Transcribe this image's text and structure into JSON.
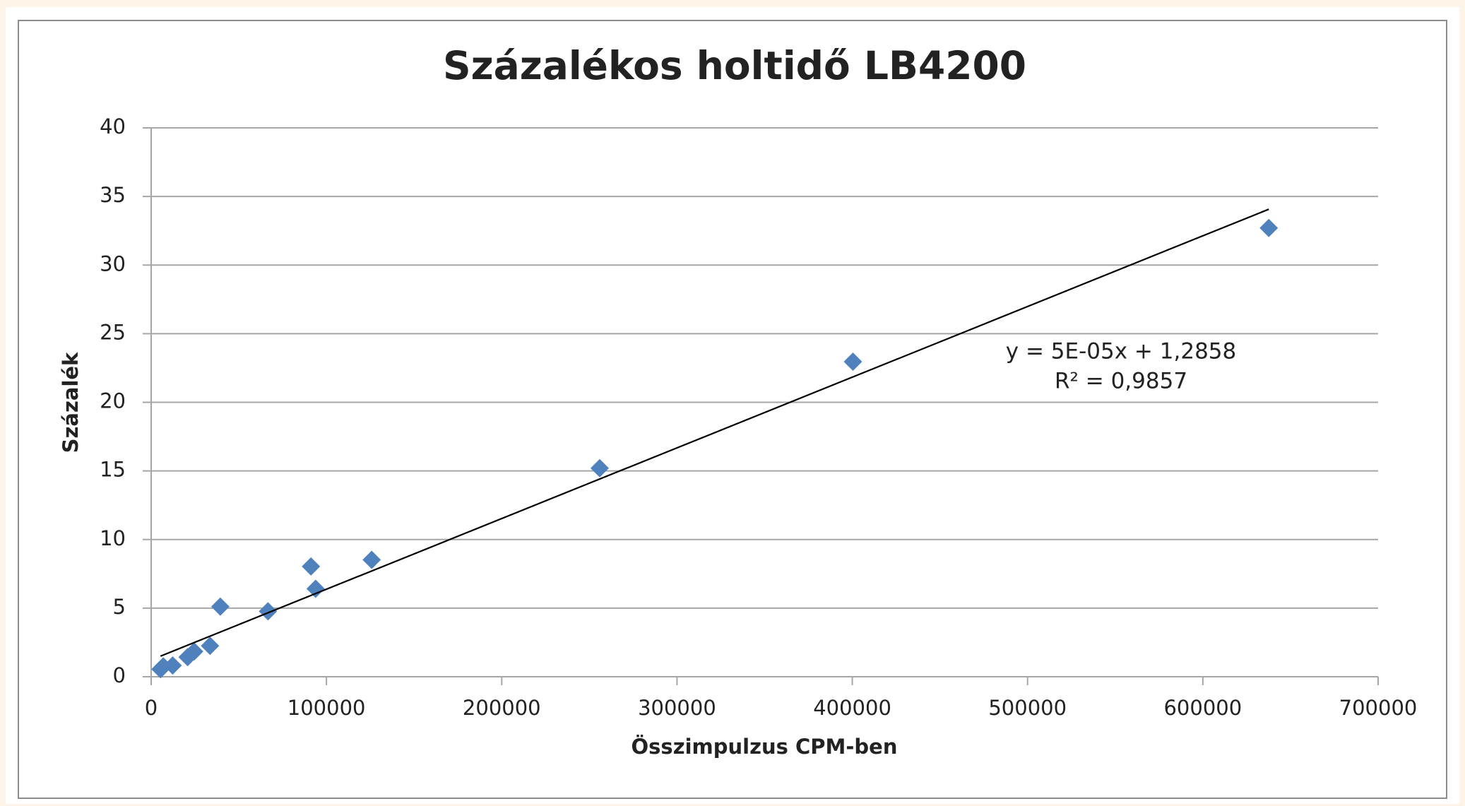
{
  "chart_data": {
    "type": "scatter",
    "title": "Százalékos holtidő LB4200",
    "xlabel": "Összimpulzus CPM-ben",
    "ylabel": "Százalék",
    "annotations": [
      "y = 5E-05x + 1,2858",
      "R² = 0,9857"
    ],
    "series": [
      {
        "name": "Százalék",
        "color": "#4f81bd",
        "x": [
          5331,
          6900,
          12260,
          20790,
          24520,
          33590,
          39450,
          66640,
          91160,
          93830,
          125820,
          255900,
          400380,
          637620
        ],
        "values": [
          0.55,
          0.75,
          0.82,
          1.43,
          1.84,
          2.25,
          5.11,
          4.77,
          8.04,
          6.41,
          8.52,
          15.2,
          22.96,
          32.7
        ]
      }
    ],
    "trendline": {
      "color": "#000000",
      "x": [
        5331,
        637620
      ],
      "values": [
        1.5,
        34.07
      ]
    },
    "xlim": [
      0,
      700000
    ],
    "xticks": [
      0,
      100000,
      200000,
      300000,
      400000,
      500000,
      600000,
      700000
    ],
    "ylim": [
      0,
      40
    ],
    "yticks": [
      0,
      5,
      10,
      15,
      20,
      25,
      30,
      35,
      40
    ],
    "grid": true
  }
}
